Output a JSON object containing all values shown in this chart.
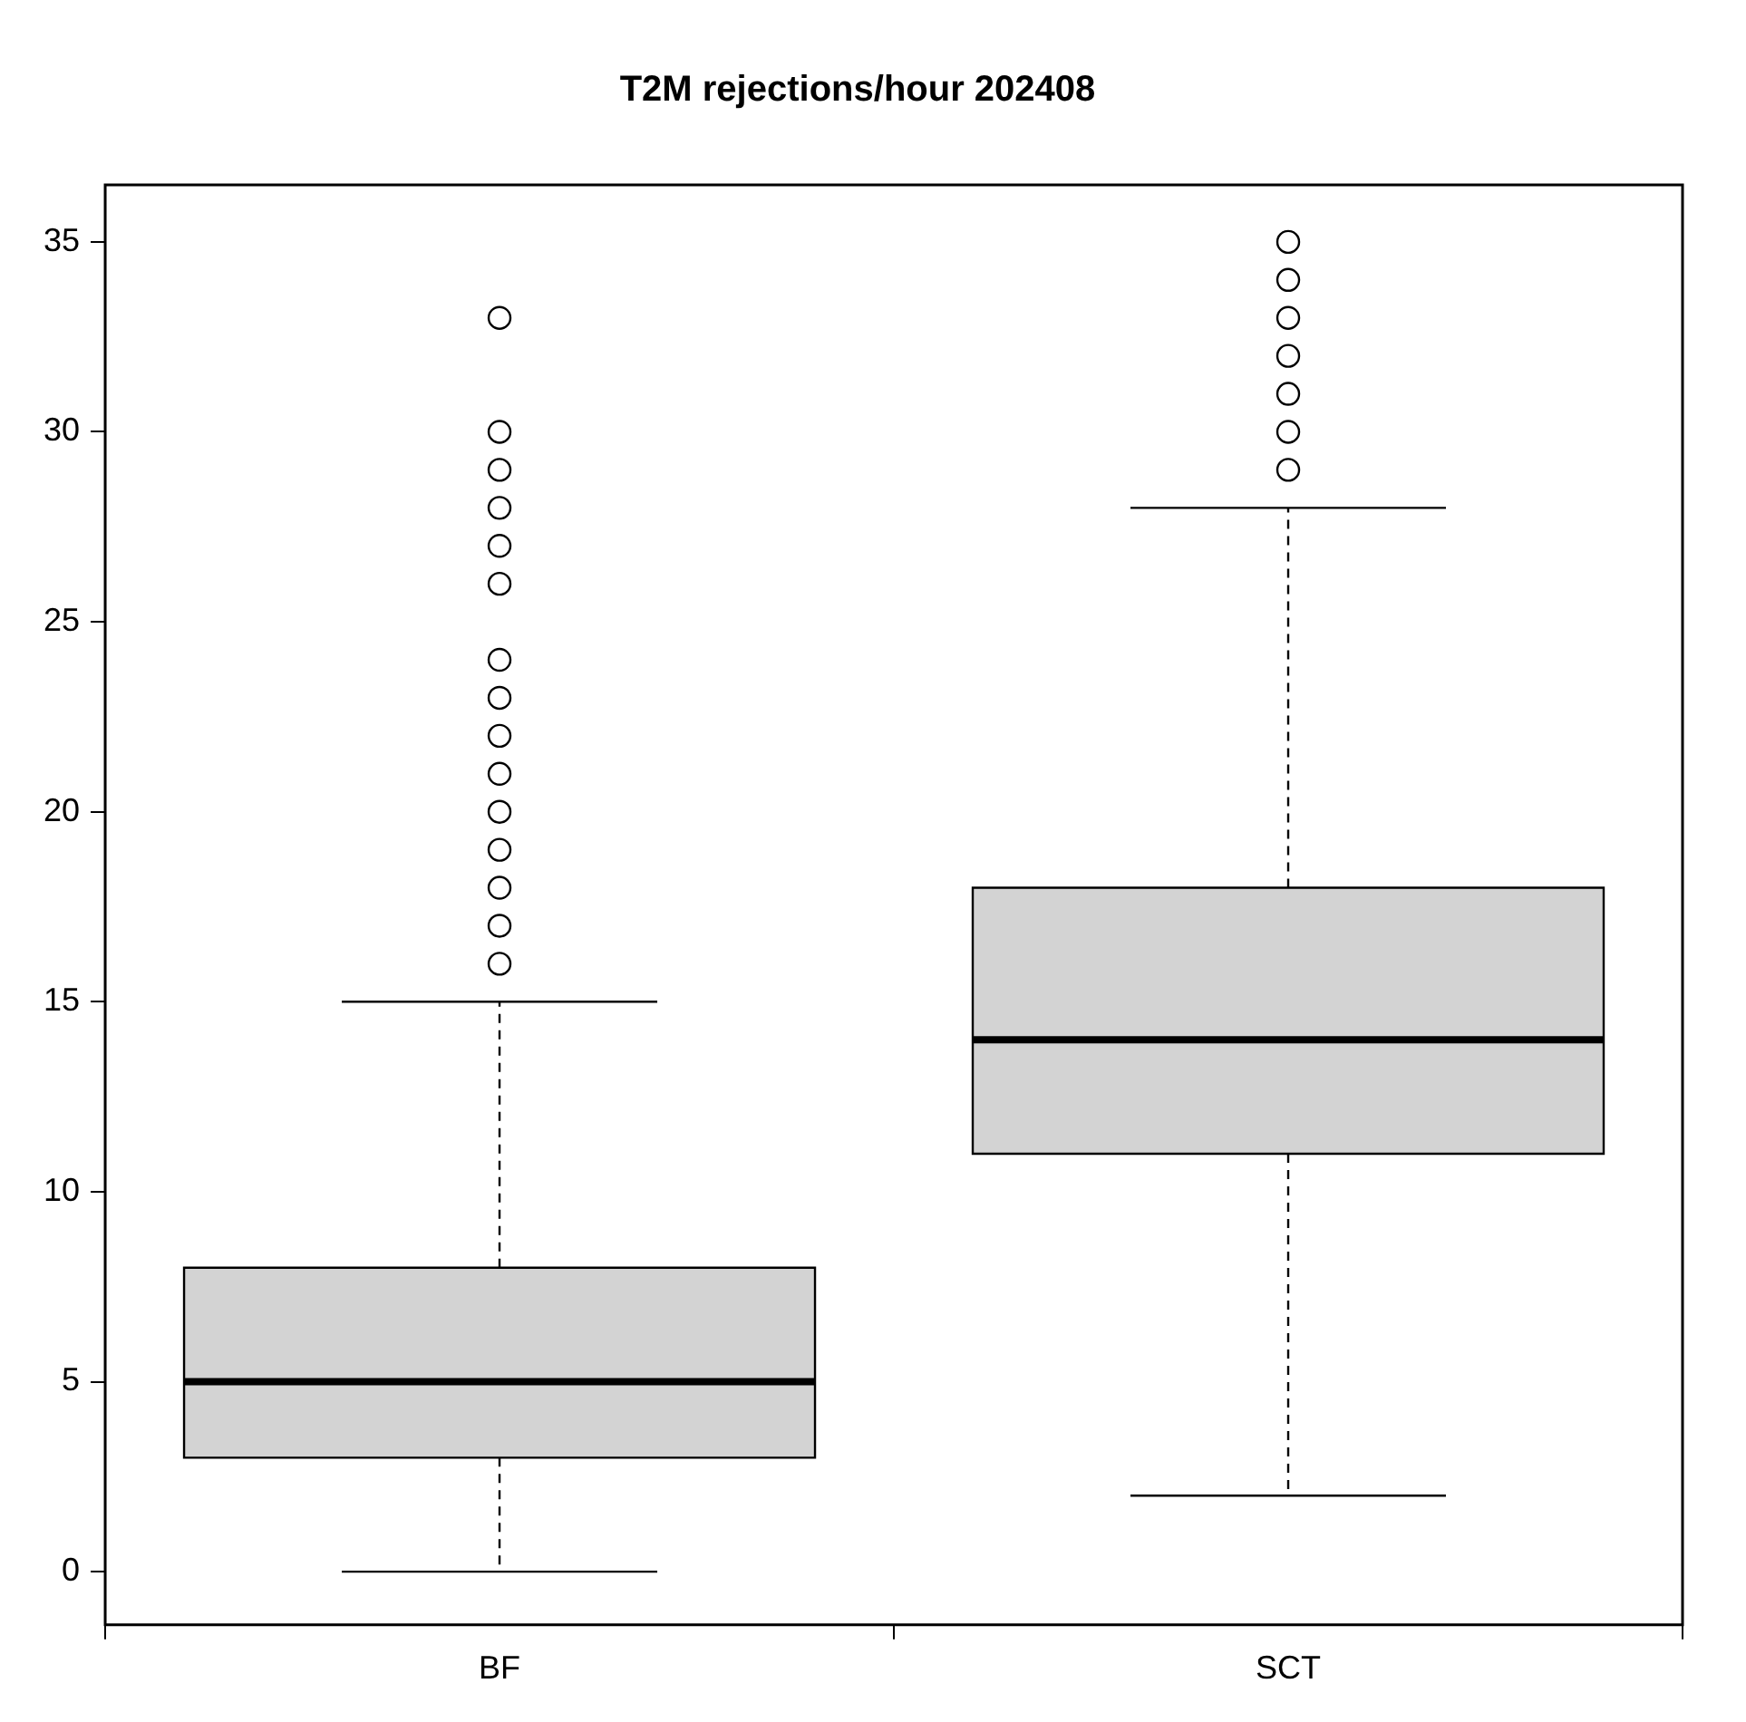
{
  "chart_data": {
    "type": "box",
    "title": "T2M rejections/hour 202408",
    "categories": [
      "BF",
      "SCT"
    ],
    "color": "#d3d3d3",
    "boxes": [
      {
        "low": 0,
        "q1": 3,
        "median": 5,
        "q3": 8,
        "high": 15,
        "outliers": [
          16,
          17,
          18,
          19,
          20,
          21,
          22,
          23,
          24,
          26,
          27,
          28,
          29,
          30,
          33
        ]
      },
      {
        "low": 2,
        "q1": 11,
        "median": 14,
        "q3": 18,
        "high": 28,
        "outliers": [
          29,
          30,
          31,
          32,
          33,
          34,
          35
        ]
      }
    ],
    "ylim": [
      -1.4,
      36.5
    ],
    "yticks": [
      0,
      5,
      10,
      15,
      20,
      25,
      30,
      35
    ],
    "grid": false,
    "legend": false
  }
}
